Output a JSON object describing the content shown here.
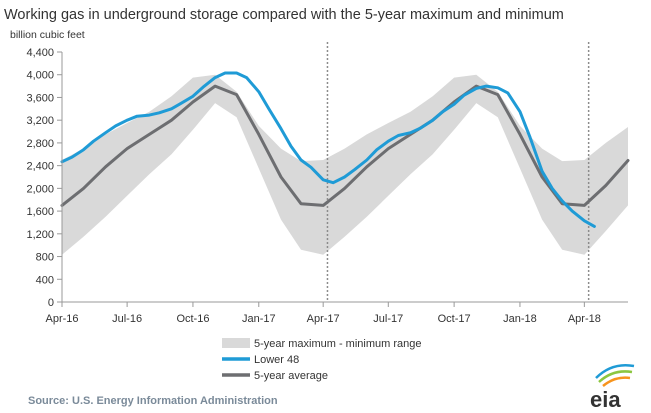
{
  "chart_data": {
    "type": "area",
    "title": "Working gas in underground storage compared with the 5-year maximum and minimum",
    "ylabel": "billion cubic feet",
    "xlabel": "",
    "ylim": [
      0,
      4400
    ],
    "yticks": [
      0,
      400,
      800,
      1200,
      1600,
      2000,
      2400,
      2800,
      3200,
      3600,
      4000,
      4400
    ],
    "xlim": [
      "2016-04-01",
      "2018-06-01"
    ],
    "x_tick_labels": [
      {
        "label": "Apr-16",
        "date": "2016-04-01"
      },
      {
        "label": "Jul-16",
        "date": "2016-07-01"
      },
      {
        "label": "Oct-16",
        "date": "2016-10-01"
      },
      {
        "label": "Jan-17",
        "date": "2017-01-01"
      },
      {
        "label": "Apr-17",
        "date": "2017-04-01"
      },
      {
        "label": "Jul-17",
        "date": "2017-07-01"
      },
      {
        "label": "Oct-17",
        "date": "2017-10-01"
      },
      {
        "label": "Jan-18",
        "date": "2018-01-01"
      },
      {
        "label": "Apr-18",
        "date": "2018-04-01"
      }
    ],
    "dashed_markers": [
      "2017-04-07",
      "2018-04-07"
    ],
    "grid": false,
    "legend_position": "bottom-center",
    "series": [
      {
        "name": "5-year maximum - minimum range",
        "type": "band",
        "color": "#d9d9d9",
        "x": [
          "2016-04-01",
          "2016-05-01",
          "2016-06-01",
          "2016-07-01",
          "2016-08-01",
          "2016-09-01",
          "2016-10-01",
          "2016-11-01",
          "2016-12-01",
          "2017-01-01",
          "2017-02-01",
          "2017-03-01",
          "2017-04-01",
          "2017-05-01",
          "2017-06-01",
          "2017-07-01",
          "2017-08-01",
          "2017-09-01",
          "2017-10-01",
          "2017-11-01",
          "2017-12-01",
          "2018-01-01",
          "2018-02-01",
          "2018-03-01",
          "2018-04-01",
          "2018-05-01",
          "2018-06-01"
        ],
        "upper": [
          2500,
          2700,
          2950,
          3150,
          3350,
          3620,
          3950,
          4000,
          3700,
          3100,
          2700,
          2480,
          2500,
          2700,
          2950,
          3150,
          3350,
          3620,
          3950,
          4000,
          3700,
          3100,
          2700,
          2480,
          2500,
          2800,
          3080
        ],
        "lower": [
          830,
          1150,
          1500,
          1870,
          2250,
          2600,
          3030,
          3500,
          3250,
          2350,
          1450,
          920,
          830,
          1150,
          1500,
          1870,
          2250,
          2600,
          3030,
          3500,
          3250,
          2350,
          1450,
          920,
          830,
          1250,
          1700
        ]
      },
      {
        "name": "Lower 48",
        "type": "line",
        "color": "#1f9bd6",
        "x": [
          "2016-04-01",
          "2016-04-15",
          "2016-05-01",
          "2016-05-15",
          "2016-06-01",
          "2016-06-15",
          "2016-07-01",
          "2016-07-15",
          "2016-08-01",
          "2016-08-15",
          "2016-09-01",
          "2016-09-15",
          "2016-10-01",
          "2016-10-15",
          "2016-11-01",
          "2016-11-15",
          "2016-12-01",
          "2016-12-15",
          "2017-01-01",
          "2017-01-15",
          "2017-02-01",
          "2017-02-15",
          "2017-03-01",
          "2017-03-15",
          "2017-04-01",
          "2017-04-15",
          "2017-05-01",
          "2017-05-15",
          "2017-06-01",
          "2017-06-15",
          "2017-07-01",
          "2017-07-15",
          "2017-08-01",
          "2017-08-15",
          "2017-09-01",
          "2017-09-15",
          "2017-10-01",
          "2017-10-15",
          "2017-11-01",
          "2017-11-15",
          "2017-12-01",
          "2017-12-15",
          "2018-01-01",
          "2018-01-15",
          "2018-02-01",
          "2018-02-15",
          "2018-03-01",
          "2018-03-15",
          "2018-04-01",
          "2018-04-15"
        ],
        "values": [
          2470,
          2550,
          2680,
          2830,
          2980,
          3100,
          3200,
          3270,
          3290,
          3330,
          3400,
          3500,
          3620,
          3780,
          3950,
          4030,
          4030,
          3950,
          3700,
          3400,
          3050,
          2740,
          2500,
          2370,
          2150,
          2100,
          2200,
          2330,
          2500,
          2680,
          2830,
          2930,
          2980,
          3060,
          3200,
          3350,
          3480,
          3640,
          3760,
          3800,
          3770,
          3680,
          3350,
          2900,
          2300,
          2000,
          1780,
          1600,
          1430,
          1330
        ]
      },
      {
        "name": "5-year average",
        "type": "line",
        "color": "#6d6e71",
        "x": [
          "2016-04-01",
          "2016-05-01",
          "2016-06-01",
          "2016-07-01",
          "2016-08-01",
          "2016-09-01",
          "2016-10-01",
          "2016-11-01",
          "2016-12-01",
          "2017-01-01",
          "2017-02-01",
          "2017-03-01",
          "2017-04-01",
          "2017-05-01",
          "2017-06-01",
          "2017-07-01",
          "2017-08-01",
          "2017-09-01",
          "2017-10-01",
          "2017-11-01",
          "2017-12-01",
          "2018-01-01",
          "2018-02-01",
          "2018-03-01",
          "2018-04-01",
          "2018-05-01",
          "2018-06-01"
        ],
        "values": [
          1700,
          2000,
          2380,
          2700,
          2950,
          3200,
          3520,
          3800,
          3650,
          2950,
          2200,
          1730,
          1700,
          2000,
          2380,
          2700,
          2950,
          3200,
          3520,
          3800,
          3650,
          2950,
          2200,
          1730,
          1700,
          2050,
          2490
        ]
      }
    ]
  },
  "source": "Source:  U.S. Energy Information Administration",
  "logo": {
    "text": "eia",
    "icon": "eia-sunburst-logo-icon"
  }
}
